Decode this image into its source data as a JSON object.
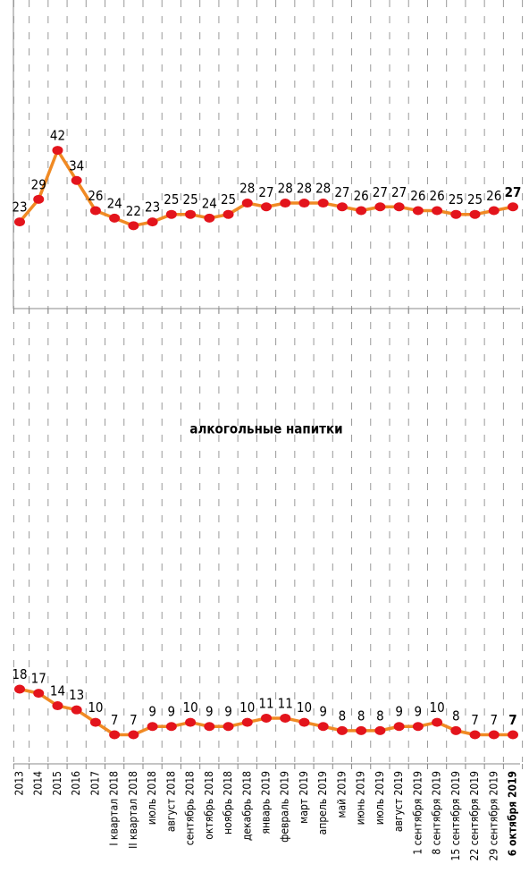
{
  "chart_data": [
    {
      "type": "line",
      "color": "#f08a24",
      "marker_color": "#e3141c",
      "values": [
        23,
        29,
        42,
        34,
        26,
        24,
        22,
        23,
        25,
        25,
        24,
        25,
        28,
        27,
        28,
        28,
        28,
        27,
        26,
        27,
        27,
        26,
        26,
        25,
        25,
        26,
        27
      ],
      "ylim": [
        0,
        80
      ]
    },
    {
      "type": "line",
      "title": "алкогольные напитки",
      "color": "#f08a24",
      "marker_color": "#e3141c",
      "categories": [
        "2013",
        "2014",
        "2015",
        "2016",
        "2017",
        "I квартал 2018",
        "II квартал 2018",
        "июль 2018",
        "август 2018",
        "сентябрь 2018",
        "октябрь 2018",
        "ноябрь 2018",
        "декабрь 2018",
        "январь 2019",
        "февраль 2019",
        "март 2019",
        "апрель 2019",
        "май 2019",
        "июнь 2019",
        "июль 2019",
        "август 2019",
        "1 сентября 2019",
        "8 сентября 2019",
        "15 сентября 2019",
        "22 сентября 2019",
        "29 сентября 2019",
        "6 октября 2019"
      ],
      "values": [
        18,
        17,
        14,
        13,
        10,
        7,
        7,
        9,
        9,
        10,
        9,
        9,
        10,
        11,
        11,
        10,
        9,
        8,
        8,
        8,
        9,
        9,
        10,
        8,
        7,
        7,
        7
      ],
      "ylim": [
        0,
        75
      ]
    }
  ]
}
